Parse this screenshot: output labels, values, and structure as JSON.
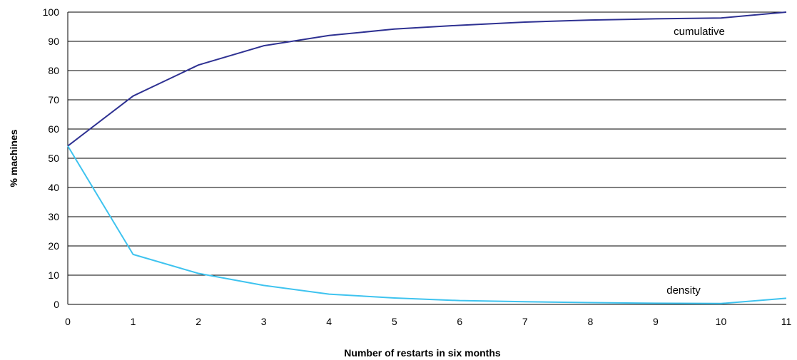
{
  "chart_data": {
    "type": "line",
    "xlabel": "Number of restarts in six months",
    "ylabel": "% machines",
    "x": [
      0,
      1,
      2,
      3,
      4,
      5,
      6,
      7,
      8,
      9,
      10,
      11
    ],
    "xlim": [
      0,
      11
    ],
    "ylim": [
      0,
      100
    ],
    "y_ticks": [
      0,
      10,
      20,
      30,
      40,
      50,
      60,
      70,
      80,
      90,
      100
    ],
    "grid": true,
    "series": [
      {
        "name": "cumulative",
        "color": "#2E3192",
        "values": [
          54.2,
          71.3,
          81.9,
          88.5,
          92.0,
          94.2,
          95.5,
          96.6,
          97.3,
          97.7,
          98.0,
          100
        ]
      },
      {
        "name": "density",
        "color": "#3EC3EF",
        "values": [
          54.2,
          17.1,
          10.6,
          6.5,
          3.5,
          2.2,
          1.3,
          0.9,
          0.6,
          0.4,
          0.3,
          2.1
        ]
      }
    ]
  }
}
